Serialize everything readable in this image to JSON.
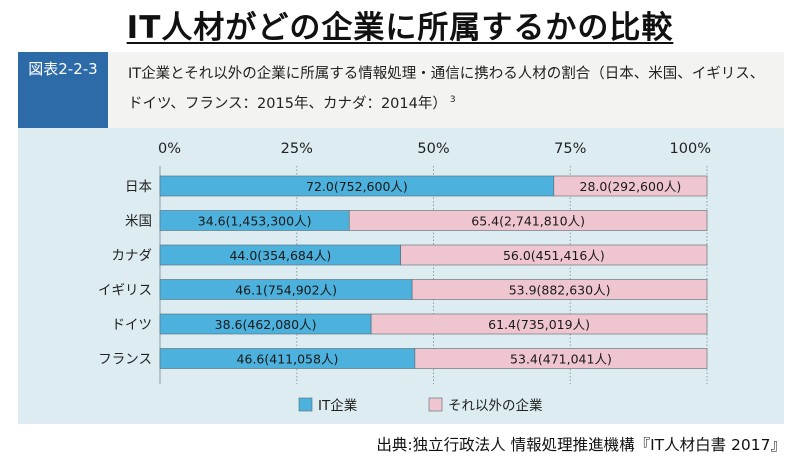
{
  "page_title": "IT人材がどの企業に所属するかの比較",
  "figure": {
    "label": "図表2-2-3",
    "caption": "IT企業とそれ以外の企業に所属する情報処理・通信に携わる人材の割合（日本、米国、イギリス、ドイツ、フランス：2015年、カナダ：2014年）",
    "note": "3"
  },
  "source": "出典:独立行政法人 情報処理推進機構『IT人材白書 2017』",
  "colors": {
    "it": "#4cb1dc",
    "other": "#efc6cf",
    "grid": "#8aa0aa"
  },
  "chart_data": {
    "type": "bar",
    "orientation": "horizontal",
    "stacked": true,
    "x_ticks": [
      "0%",
      "25%",
      "50%",
      "75%",
      "100%"
    ],
    "xlim": [
      0,
      100
    ],
    "categories": [
      "日本",
      "米国",
      "カナダ",
      "イギリス",
      "ドイツ",
      "フランス"
    ],
    "series": [
      {
        "name": "IT企業",
        "values": [
          72.0,
          34.6,
          44.0,
          46.1,
          38.6,
          46.6
        ],
        "labels": [
          "72.0(752,600人)",
          "34.6(1,453,300人)",
          "44.0(354,684人)",
          "46.1(754,902人)",
          "38.6(462,080人)",
          "46.6(411,058人)"
        ]
      },
      {
        "name": "それ以外の企業",
        "values": [
          28.0,
          65.4,
          56.0,
          53.9,
          61.4,
          53.4
        ],
        "labels": [
          "28.0(292,600人)",
          "65.4(2,741,810人)",
          "56.0(451,416人)",
          "53.9(882,630人)",
          "61.4(735,019人)",
          "53.4(471,041人)"
        ]
      }
    ],
    "legend_position": "bottom",
    "grid": true
  }
}
